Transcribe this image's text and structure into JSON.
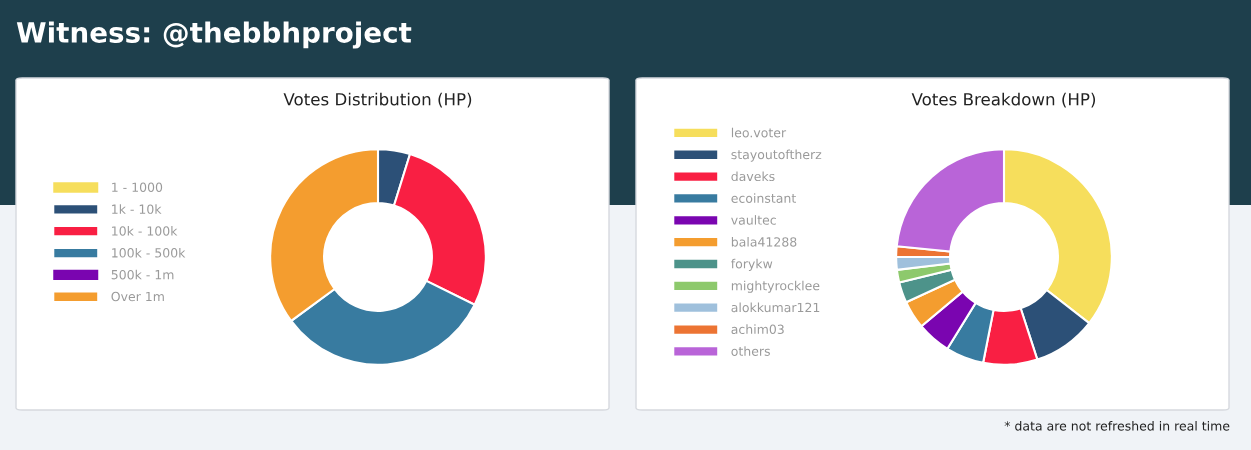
{
  "chart_data": [
    {
      "type": "donut",
      "title": "Votes Distribution (HP)",
      "annotations": [
        "Witness: @thebbhproject"
      ],
      "legend": "left",
      "categories": [
        "1 - 1000",
        "1k - 10k",
        "10k - 100k",
        "100k - 500k",
        "500k - 1m",
        "Over 1m"
      ],
      "values": [
        0,
        4.8,
        27.5,
        32.6,
        0,
        35.1
      ],
      "colors": [
        "#f6de5c",
        "#2c5077",
        "#f91f43",
        "#387ba0",
        "#7a05b0",
        "#f49d2f"
      ]
    },
    {
      "type": "donut",
      "title": "Votes Breakdown (HP)",
      "annotations": [
        "* data are not refreshed in real time"
      ],
      "legend": "left",
      "categories": [
        "leo.voter",
        "stayoutoftherz",
        "daveks",
        "ecoinstant",
        "vaultec",
        "bala41288",
        "forykw",
        "mightyrocklee",
        "alokkumar121",
        "achim03",
        "others"
      ],
      "values": [
        35.5,
        9.5,
        8.1,
        5.7,
        5.1,
        4.2,
        3.1,
        1.9,
        1.9,
        1.6,
        23.4
      ],
      "colors": [
        "#f6de5c",
        "#2c5077",
        "#f91f43",
        "#387ba0",
        "#7a05b0",
        "#f49d2f",
        "#4d938a",
        "#8dc96c",
        "#9fc0dc",
        "#ec7433",
        "#b964d8"
      ]
    }
  ]
}
